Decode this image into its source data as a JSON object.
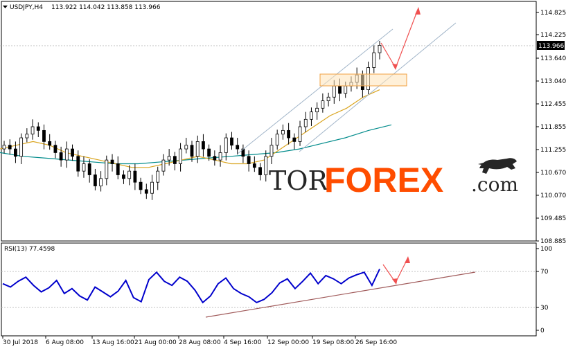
{
  "header": {
    "symbol_label": "USDJPY,H4",
    "ohlc_label": "113.922 114.042 113.858 113.966"
  },
  "price_axis": {
    "ticks": [
      "114.825",
      "114.225",
      "113.640",
      "113.040",
      "112.455",
      "111.855",
      "111.255",
      "110.670",
      "110.070",
      "109.485",
      "108.885"
    ],
    "current_price": "113.966"
  },
  "rsi": {
    "label": "RSI(13) 77.4598",
    "ticks": [
      "100",
      "70",
      "30",
      "0"
    ],
    "levels": [
      70,
      30
    ],
    "color": "#0000cc"
  },
  "time_axis": {
    "labels": [
      "30 Jul 2018",
      "6 Aug 08:00",
      "13 Aug 16:00",
      "21 Aug 00:00",
      "28 Aug 08:00",
      "4 Sep 16:00",
      "12 Sep 00:00",
      "19 Sep 08:00",
      "26 Sep 16:00"
    ]
  },
  "logo": {
    "part1": "TOR",
    "part2": "FOREX",
    "part3": ".com",
    "icon": "bull-icon",
    "accent_color": "#ff4d00"
  },
  "chart_data": {
    "type": "candlestick",
    "symbol": "USDJPY",
    "timeframe": "H4",
    "ylim": [
      108.75,
      115.15
    ],
    "rsi_ylim": [
      0,
      100
    ],
    "close_approx": [
      111.3,
      111.2,
      111.0,
      111.5,
      111.6,
      111.8,
      111.7,
      111.4,
      111.3,
      111.1,
      110.9,
      111.2,
      111.0,
      110.6,
      110.8,
      110.5,
      110.2,
      110.4,
      110.9,
      110.8,
      110.5,
      110.4,
      110.6,
      110.3,
      110.1,
      110.0,
      110.3,
      110.6,
      110.9,
      111.0,
      110.8,
      111.2,
      111.3,
      111.0,
      111.4,
      111.2,
      111.0,
      110.9,
      111.1,
      111.5,
      111.3,
      111.2,
      111.0,
      110.8,
      110.7,
      110.5,
      111.0,
      111.3,
      111.6,
      111.7,
      111.5,
      111.4,
      111.8,
      112.0,
      112.2,
      112.3,
      112.5,
      112.6,
      112.9,
      112.7,
      112.9,
      113.0,
      113.2,
      112.8,
      113.4,
      113.8,
      114.0
    ],
    "ma_fast_approx": [
      111.2,
      111.3,
      111.4,
      111.3,
      111.1,
      111.0,
      110.9,
      110.8,
      110.7,
      110.7,
      110.8,
      110.9,
      111.0,
      110.9,
      110.8,
      110.8,
      110.9,
      111.2,
      111.5,
      111.8,
      112.1,
      112.3,
      112.6,
      112.8
    ],
    "ma_slow_approx": [
      111.1,
      111.0,
      110.95,
      110.9,
      110.85,
      110.8,
      110.8,
      110.85,
      110.9,
      110.95,
      111.0,
      111.05,
      111.1,
      111.2,
      111.35,
      111.5,
      111.7,
      111.85
    ],
    "rsi_values_approx": [
      57,
      53,
      60,
      65,
      55,
      47,
      52,
      61,
      45,
      51,
      42,
      37,
      53,
      47,
      41,
      48,
      61,
      40,
      35,
      62,
      71,
      60,
      55,
      65,
      60,
      49,
      34,
      42,
      57,
      64,
      51,
      45,
      41,
      34,
      38,
      46,
      58,
      63,
      51,
      60,
      70,
      57,
      67,
      63,
      57,
      64,
      68,
      71,
      55,
      75
    ]
  }
}
